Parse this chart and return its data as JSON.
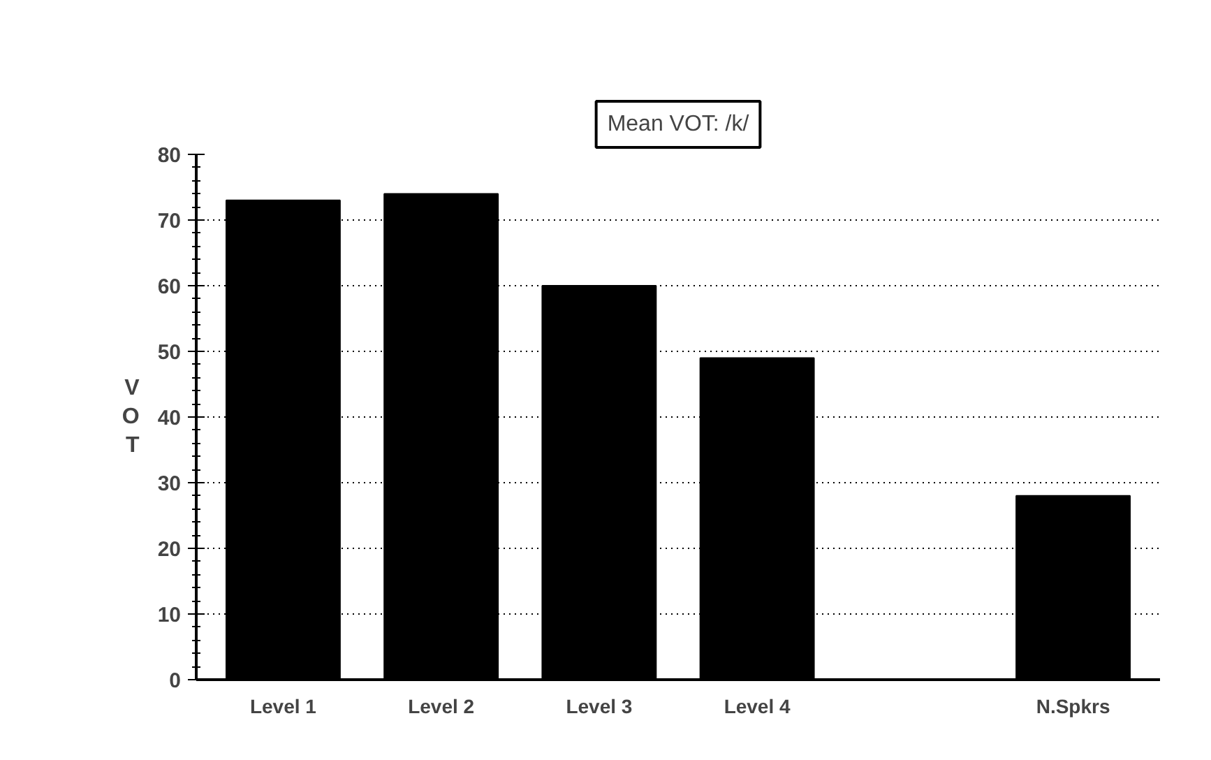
{
  "chart_data": {
    "type": "bar",
    "title": "Mean VOT: /k/",
    "ylabel": "VOT",
    "categories": [
      "Level 1",
      "Level 2",
      "Level 3",
      "Level 4",
      null,
      "N.Spkrs"
    ],
    "values": [
      73,
      74,
      60,
      49,
      null,
      28
    ],
    "color": "#000000",
    "ylim": [
      0,
      80
    ],
    "yticks": [
      0,
      10,
      20,
      30,
      40,
      50,
      60,
      70,
      80
    ],
    "grid": "y"
  }
}
